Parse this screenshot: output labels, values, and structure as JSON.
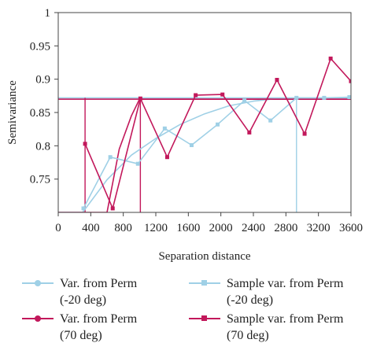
{
  "chart_data": {
    "type": "line",
    "xlabel": "Separation distance",
    "ylabel": "Semivariance",
    "xlim": [
      0,
      3600
    ],
    "ylim": [
      0.7,
      1.0
    ],
    "xticks": [
      0,
      400,
      800,
      1200,
      1600,
      2000,
      2400,
      2800,
      3200,
      3600
    ],
    "yticks": [
      0.75,
      0.8,
      0.85,
      0.9,
      0.95,
      1
    ],
    "ytick_labels": [
      "0.75",
      "0.8",
      "0.85",
      "0.9",
      "0.95",
      "1"
    ],
    "grid": false,
    "legend_placement": "bottom",
    "series": [
      {
        "name": "Var. from Perm\n(-20 deg)",
        "kind": "model",
        "color": "#9fd0e6",
        "marker": "circle",
        "x": [
          0,
          300,
          600,
          900,
          1200,
          1500,
          1800,
          2100,
          2400,
          2700,
          3000,
          3300,
          3600
        ],
        "y": [
          0.7,
          0.7,
          0.749,
          0.786,
          0.811,
          0.832,
          0.848,
          0.86,
          0.867,
          0.871,
          0.872,
          0.872,
          0.872
        ]
      },
      {
        "name": "Var. from Perm\n(70 deg)",
        "kind": "model",
        "color": "#c2185b",
        "marker": "circle",
        "x": [
          0,
          300,
          600,
          750,
          900,
          1000,
          1100,
          1400,
          2000,
          2800,
          3600
        ],
        "y": [
          0.7,
          0.7,
          0.7,
          0.795,
          0.845,
          0.87,
          0.87,
          0.87,
          0.87,
          0.87,
          0.87
        ]
      },
      {
        "name": "Sample var. from Perm\n(-20 deg)",
        "kind": "sample",
        "color": "#9fd0e6",
        "marker": "square",
        "x": [
          310,
          640,
          980,
          1310,
          1640,
          1960,
          2290,
          2610,
          2930,
          3270,
          3580
        ],
        "y": [
          0.706,
          0.783,
          0.773,
          0.826,
          0.801,
          0.832,
          0.868,
          0.838,
          0.872,
          0.872,
          0.873
        ]
      },
      {
        "name": "Sample var. from Perm\n(70 deg)",
        "kind": "sample",
        "color": "#c2185b",
        "marker": "square",
        "x": [
          330,
          670,
          1010,
          1340,
          1690,
          2020,
          2350,
          2690,
          3030,
          3350,
          3600
        ],
        "y": [
          0.803,
          0.706,
          0.871,
          0.783,
          0.876,
          0.877,
          0.82,
          0.899,
          0.818,
          0.931,
          0.897
        ]
      }
    ],
    "reference_lines": [
      {
        "y": 0.872,
        "color": "#9fd0e6"
      },
      {
        "y": 0.87,
        "color": "#c2185b"
      }
    ],
    "vertical_lines": [
      {
        "x": 330,
        "color": "#c2185b"
      },
      {
        "x": 1010,
        "color": "#c2185b"
      },
      {
        "x": 2930,
        "color": "#9fd0e6"
      }
    ]
  }
}
